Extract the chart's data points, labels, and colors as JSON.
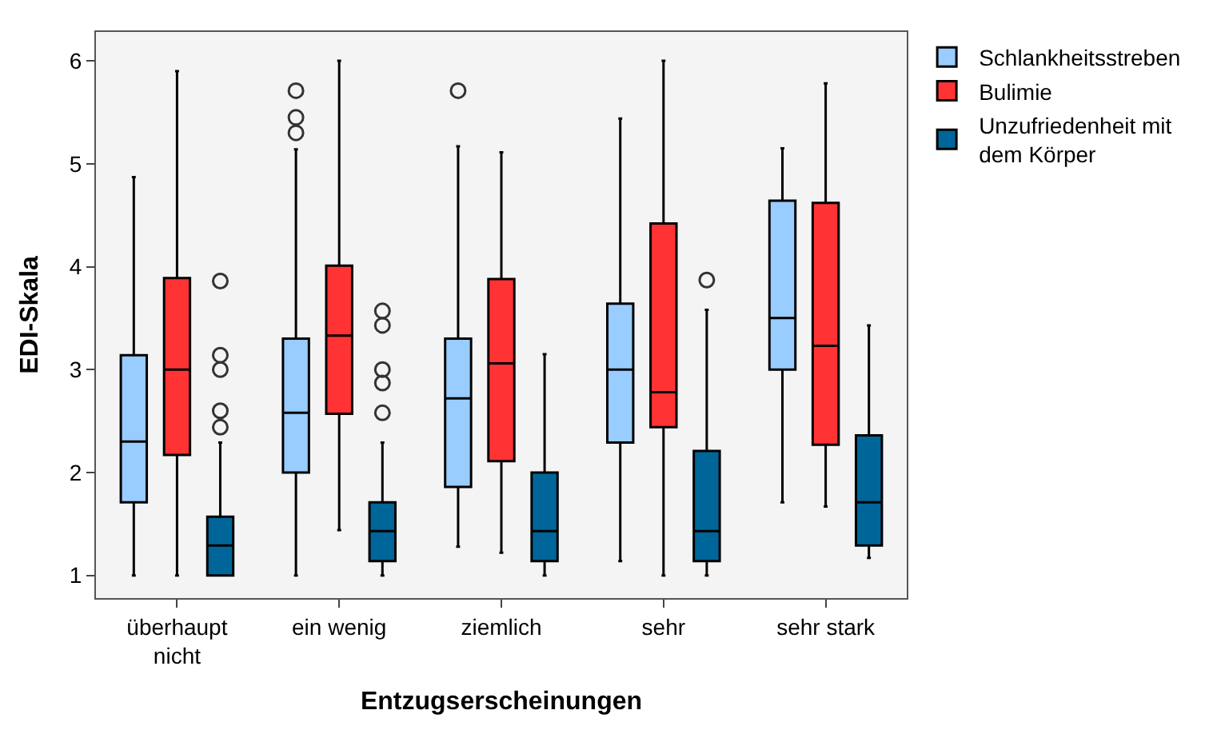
{
  "chart_data": {
    "type": "box",
    "xlabel": "Entzugserscheinungen",
    "ylabel": "EDI-Skala",
    "categories": [
      "überhaupt nicht",
      "ein wenig",
      "ziemlich",
      "sehr",
      "sehr stark"
    ],
    "ylim": [
      0.78,
      6.28
    ],
    "yticks": [
      1,
      2,
      3,
      4,
      5,
      6
    ],
    "grid": false,
    "legend": "top right",
    "marker": "circle",
    "series": [
      {
        "name": "Schlankheitsstreben",
        "color": "#99ccff",
        "boxes": [
          {
            "low": 1.0,
            "q1": 1.71,
            "median": 2.3,
            "q3": 3.14,
            "high": 4.87
          },
          {
            "low": 1.0,
            "q1": 2.0,
            "median": 2.58,
            "q3": 3.3,
            "high": 5.14,
            "outliers": [
              5.3,
              5.45,
              5.71
            ]
          },
          {
            "low": 1.28,
            "q1": 1.86,
            "median": 2.72,
            "q3": 3.3,
            "high": 5.17,
            "outliers": [
              5.71
            ]
          },
          {
            "low": 1.14,
            "q1": 2.29,
            "median": 3.0,
            "q3": 3.64,
            "high": 5.44
          },
          {
            "low": 1.71,
            "q1": 3.0,
            "median": 3.5,
            "q3": 4.64,
            "high": 5.15
          }
        ]
      },
      {
        "name": "Bulimie",
        "color": "#ff3333",
        "boxes": [
          {
            "low": 1.0,
            "q1": 2.17,
            "median": 3.0,
            "q3": 3.89,
            "high": 5.9
          },
          {
            "low": 1.44,
            "q1": 2.57,
            "median": 3.33,
            "q3": 4.01,
            "high": 6.0
          },
          {
            "low": 1.22,
            "q1": 2.11,
            "median": 3.06,
            "q3": 3.88,
            "high": 5.11
          },
          {
            "low": 1.0,
            "q1": 2.44,
            "median": 2.78,
            "q3": 4.42,
            "high": 6.0
          },
          {
            "low": 1.67,
            "q1": 2.27,
            "median": 3.23,
            "q3": 4.62,
            "high": 5.78
          }
        ]
      },
      {
        "name": "Unzufriedenheit mit dem Körper",
        "color": "#006699",
        "boxes": [
          {
            "low": 1.0,
            "q1": 1.0,
            "median": 1.29,
            "q3": 1.57,
            "high": 2.29,
            "outliers": [
              2.44,
              2.6,
              3.0,
              3.14,
              3.86
            ]
          },
          {
            "low": 1.0,
            "q1": 1.14,
            "median": 1.43,
            "q3": 1.71,
            "high": 2.29,
            "outliers": [
              2.58,
              2.87,
              3.0,
              3.43,
              3.57
            ]
          },
          {
            "low": 1.0,
            "q1": 1.14,
            "median": 1.43,
            "q3": 2.0,
            "high": 3.15
          },
          {
            "low": 1.0,
            "q1": 1.14,
            "median": 1.43,
            "q3": 2.21,
            "high": 3.58,
            "outliers": [
              3.87
            ]
          },
          {
            "low": 1.17,
            "q1": 1.29,
            "median": 1.71,
            "q3": 2.36,
            "high": 3.43
          }
        ]
      }
    ]
  }
}
